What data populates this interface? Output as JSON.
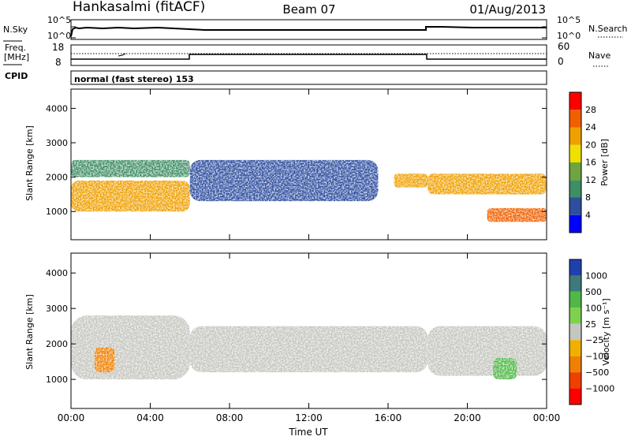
{
  "header": {
    "station": "Hankasalmi (fitACF)",
    "beam": "Beam 07",
    "date": "01/Aug/2013"
  },
  "noise_panel": {
    "left_label": "N.Sky",
    "right_label": "N.Search",
    "left_ticks": [
      "10^5",
      "10^0"
    ],
    "right_ticks": [
      "10^5",
      "10^0"
    ]
  },
  "freq_panel": {
    "left_label_line1": "Freq.",
    "left_label_line2": "[MHz]",
    "right_label": "Nave",
    "left_ticks": [
      "18",
      "8"
    ],
    "right_ticks": [
      "60",
      "0"
    ]
  },
  "cpid": {
    "label": "CPID",
    "value": "normal (fast stereo) 153"
  },
  "x_axis": {
    "title": "Time UT",
    "ticks": [
      "00:00",
      "04:00",
      "08:00",
      "12:00",
      "16:00",
      "20:00",
      "00:00"
    ]
  },
  "colors": {
    "power": [
      "#0000ff",
      "#2e4fa0",
      "#3f8e65",
      "#6fa440",
      "#f0e000",
      "#f0a000",
      "#f06000",
      "#ff0000"
    ],
    "velocity_pos": [
      "#2040b0",
      "#3f7a7a",
      "#50b848",
      "#80d050"
    ],
    "velocity_neg": [
      "#f0b000",
      "#f08000",
      "#f04000",
      "#ff0000"
    ],
    "gray": "#c6c6c0"
  },
  "chart_data": [
    {
      "type": "heatmap",
      "title": "",
      "xlabel": "Time UT",
      "ylabel": "Slant Range [km]",
      "x_range": [
        "00:00",
        "24:00"
      ],
      "ylim": [
        180,
        4560
      ],
      "y_ticks": [
        1000,
        2000,
        3000,
        4000
      ],
      "colorbar": {
        "label": "Power [dB]",
        "ticks": [
          4,
          8,
          12,
          16,
          20,
          24,
          28
        ],
        "colors": [
          "#0000ff",
          "#2e4fa0",
          "#3f8e65",
          "#6fa440",
          "#f0e000",
          "#f0a000",
          "#f06000",
          "#ff0000"
        ]
      },
      "features": [
        {
          "time": [
            0,
            6
          ],
          "range": [
            1000,
            1900
          ],
          "power_db": 24
        },
        {
          "time": [
            0,
            6
          ],
          "range": [
            2000,
            2500
          ],
          "power_db": 12
        },
        {
          "time": [
            6,
            15.5
          ],
          "range": [
            1300,
            2500
          ],
          "power_db": 8
        },
        {
          "time": [
            16.3,
            18
          ],
          "range": [
            1700,
            2100
          ],
          "power_db": 24
        },
        {
          "time": [
            18,
            24
          ],
          "range": [
            1500,
            2100
          ],
          "power_db": 24
        },
        {
          "time": [
            21,
            24
          ],
          "range": [
            700,
            1100
          ],
          "power_db": 28
        }
      ]
    },
    {
      "type": "heatmap",
      "title": "",
      "xlabel": "Time UT",
      "ylabel": "Slant Range [km]",
      "x_range": [
        "00:00",
        "24:00"
      ],
      "ylim": [
        180,
        4560
      ],
      "y_ticks": [
        1000,
        2000,
        3000,
        4000
      ],
      "colorbar": {
        "label": "Velocity [m s⁻¹]",
        "ticks": [
          "1000",
          "500",
          "100",
          "25",
          "−25",
          "−100",
          "−500",
          "−1000"
        ],
        "colors": [
          "#2040b0",
          "#3f7a7a",
          "#50b848",
          "#80d050",
          "#c6c6c0",
          "#f0b000",
          "#f08000",
          "#f04000",
          "#ff0000"
        ]
      },
      "features": [
        {
          "time": [
            0,
            6
          ],
          "range": [
            1000,
            2800
          ],
          "velocity": -25
        },
        {
          "time": [
            1.2,
            2.2
          ],
          "range": [
            1200,
            1900
          ],
          "velocity": -500
        },
        {
          "time": [
            6,
            18
          ],
          "range": [
            1200,
            2500
          ],
          "velocity": 0
        },
        {
          "time": [
            18,
            24
          ],
          "range": [
            1100,
            2500
          ],
          "velocity": 0
        },
        {
          "time": [
            21.3,
            22.5
          ],
          "range": [
            1000,
            1600
          ],
          "velocity": 100
        }
      ]
    }
  ]
}
